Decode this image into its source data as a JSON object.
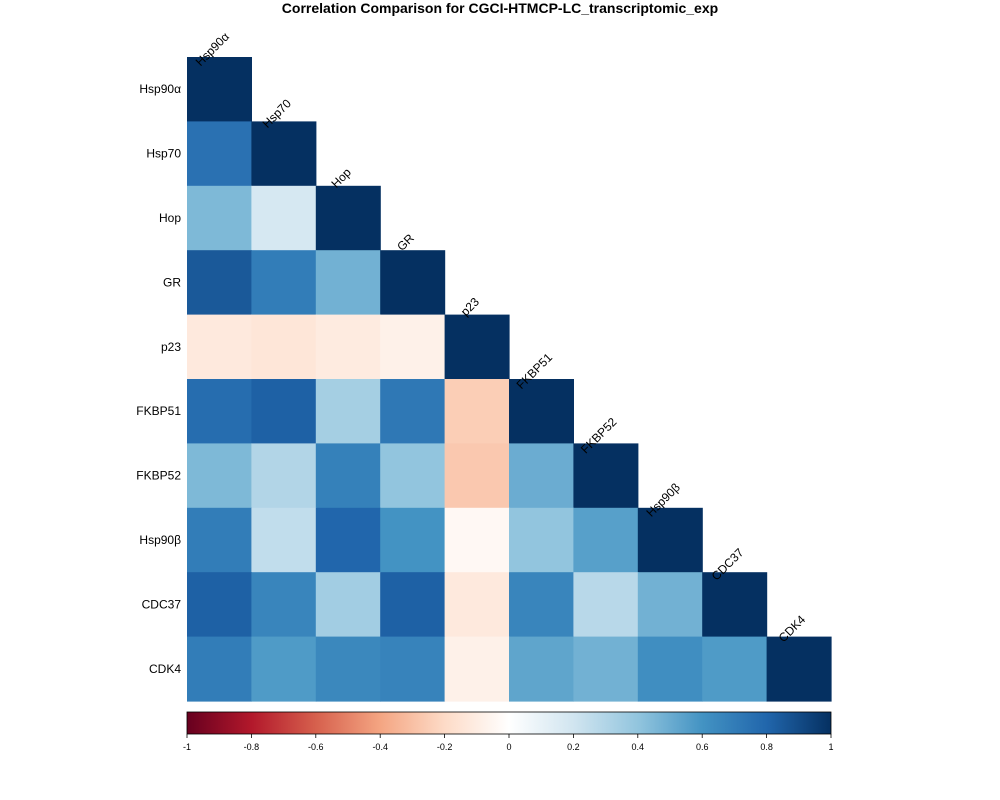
{
  "chart_data": {
    "type": "heatmap",
    "title": "Correlation Comparison for CGCI-HTMCP-LC_transcriptomic_exp",
    "layout": "lower-triangle",
    "labels": [
      "Hsp90α",
      "Hsp70",
      "Hop",
      "GR",
      "p23",
      "FKBP51",
      "FKBP52",
      "Hsp90β",
      "CDC37",
      "CDK4"
    ],
    "matrix": [
      [
        1.0
      ],
      [
        0.75,
        1.0
      ],
      [
        0.45,
        0.18,
        1.0
      ],
      [
        0.85,
        0.7,
        0.48,
        1.0
      ],
      [
        -0.12,
        -0.14,
        -0.11,
        -0.08,
        1.0
      ],
      [
        0.77,
        0.82,
        0.34,
        0.72,
        -0.25,
        1.0
      ],
      [
        0.45,
        0.3,
        0.68,
        0.4,
        -0.27,
        0.5,
        1.0
      ],
      [
        0.7,
        0.25,
        0.8,
        0.6,
        -0.04,
        0.4,
        0.55,
        1.0
      ],
      [
        0.82,
        0.66,
        0.35,
        0.82,
        -0.12,
        0.66,
        0.28,
        0.48,
        1.0
      ],
      [
        0.7,
        0.57,
        0.65,
        0.67,
        -0.08,
        0.53,
        0.48,
        0.62,
        0.57,
        1.0
      ]
    ],
    "colorbar": {
      "min": -1,
      "max": 1,
      "ticks": [
        "-1",
        "-0.8",
        "-0.6",
        "-0.4",
        "-0.2",
        "0",
        "0.2",
        "0.4",
        "0.6",
        "0.8",
        "1"
      ],
      "stops": [
        "#67001F",
        "#B2182B",
        "#D6604D",
        "#F4A582",
        "#FDDBC7",
        "#FFFFFF",
        "#D1E5F0",
        "#92C5DE",
        "#4393C3",
        "#2166AC",
        "#053061"
      ]
    }
  }
}
